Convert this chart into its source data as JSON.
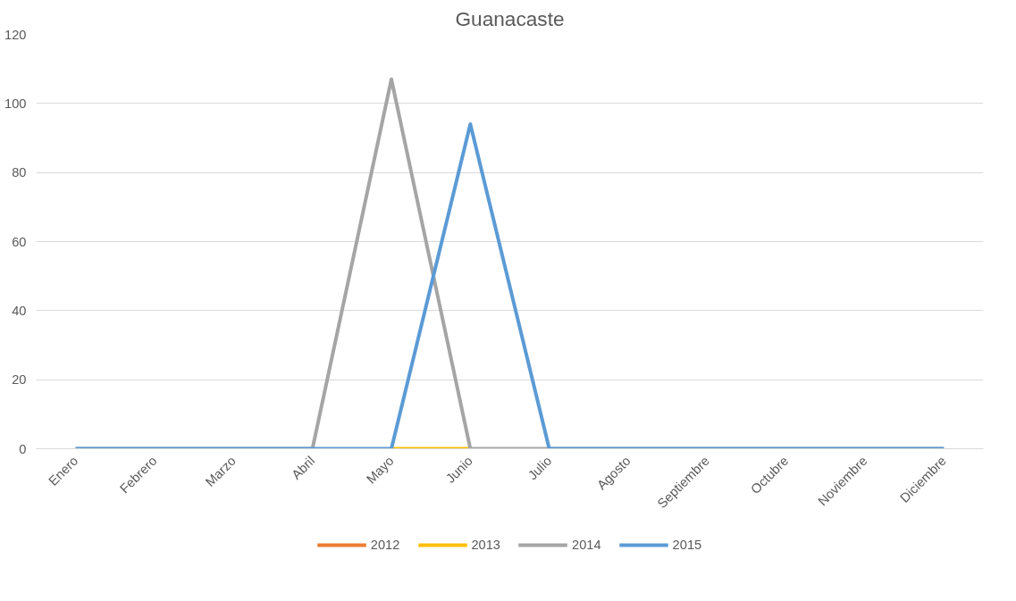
{
  "chart_data": {
    "type": "line",
    "title": "Guanacaste",
    "categories": [
      "Enero",
      "Febrero",
      "Marzo",
      "Abril",
      "Mayo",
      "Junio",
      "Julio",
      "Agosto",
      "Septiembre",
      "Octubre",
      "Noviembre",
      "Diciembre"
    ],
    "series": [
      {
        "name": "2012",
        "color": "#ed7d31",
        "values": [
          null,
          null,
          null,
          null,
          null,
          null,
          null,
          null,
          null,
          null,
          null,
          null
        ]
      },
      {
        "name": "2013",
        "color": "#ffc000",
        "values": [
          null,
          null,
          null,
          null,
          0,
          0,
          null,
          null,
          null,
          null,
          null,
          null
        ]
      },
      {
        "name": "2014",
        "color": "#a5a5a5",
        "values": [
          0,
          0,
          0,
          0,
          107,
          0,
          0,
          0,
          0,
          0,
          0,
          0
        ]
      },
      {
        "name": "2015",
        "color": "#5b9bd5",
        "values": [
          0,
          0,
          0,
          0,
          0,
          94,
          0,
          0,
          0,
          0,
          0,
          0
        ]
      }
    ],
    "ylim": [
      0,
      120
    ],
    "yticks": [
      0,
      20,
      40,
      60,
      80,
      100,
      120
    ],
    "grid": "y",
    "legend": "bottom",
    "marker": "none",
    "line_style": "solid"
  }
}
